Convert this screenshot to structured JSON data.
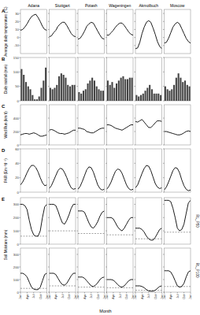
{
  "chart_data": [
    {
      "type": "line",
      "title": "A",
      "ylabel": "Average daily temperature (°C)",
      "xlim": [
        0,
        12
      ],
      "ylim": [
        -20,
        35
      ],
      "yticks": [
        -10,
        0,
        10,
        20,
        30
      ],
      "tick_labels": "y",
      "color": "#000000",
      "x": [
        0,
        1,
        2,
        3,
        4,
        5,
        6,
        7,
        8,
        9,
        10,
        11,
        12
      ],
      "series": [
        {
          "name": "Adana",
          "values": [
            9,
            10,
            13,
            17,
            22,
            26,
            28,
            29,
            25,
            20,
            14,
            10,
            9
          ]
        },
        {
          "name": "Stuttgart",
          "values": [
            1,
            2,
            6,
            9,
            14,
            17,
            19,
            19,
            15,
            10,
            5,
            2,
            1
          ]
        },
        {
          "name": "Potash",
          "values": [
            -2,
            -1,
            3,
            8,
            14,
            17,
            19,
            18,
            13,
            8,
            3,
            -1,
            -2
          ]
        },
        {
          "name": "Wageningen",
          "values": [
            3,
            3,
            6,
            9,
            13,
            16,
            18,
            18,
            15,
            11,
            7,
            4,
            3
          ]
        },
        {
          "name": "Akmolbuch",
          "values": [
            -14,
            -13,
            -6,
            5,
            13,
            19,
            21,
            19,
            12,
            4,
            -5,
            -11,
            -14
          ]
        },
        {
          "name": "Moscow",
          "values": [
            -7,
            -6,
            -1,
            6,
            13,
            17,
            19,
            17,
            11,
            5,
            -1,
            -5,
            -7
          ]
        }
      ]
    },
    {
      "type": "bar",
      "title": "B",
      "ylabel": "Daily rainfall (mm)",
      "xlim": [
        0,
        12
      ],
      "ylim": [
        0,
        150
      ],
      "yticks": [
        0,
        50,
        100,
        150
      ],
      "tick_labels": "y",
      "color": "#444444",
      "x": [
        0.5,
        1.5,
        2.5,
        3.5,
        4.5,
        5.5,
        6.5,
        7.5,
        8.5,
        9.5,
        10.5,
        11.5
      ],
      "series": [
        {
          "values": [
            110,
            90,
            65,
            50,
            40,
            20,
            5,
            5,
            15,
            45,
            70,
            115
          ]
        },
        {
          "values": [
            45,
            40,
            45,
            55,
            85,
            95,
            90,
            80,
            55,
            50,
            55,
            55
          ]
        },
        {
          "values": [
            30,
            25,
            35,
            40,
            60,
            70,
            80,
            70,
            50,
            40,
            35,
            35
          ]
        },
        {
          "values": [
            70,
            55,
            65,
            45,
            60,
            70,
            80,
            85,
            75,
            75,
            80,
            80
          ]
        },
        {
          "values": [
            20,
            15,
            20,
            25,
            35,
            45,
            55,
            40,
            25,
            25,
            25,
            20
          ]
        },
        {
          "values": [
            50,
            40,
            35,
            40,
            55,
            80,
            95,
            80,
            65,
            70,
            55,
            50
          ]
        }
      ]
    },
    {
      "type": "line",
      "title": "C",
      "ylabel": "Wind Run (km/d)",
      "xlim": [
        0,
        12
      ],
      "ylim": [
        0,
        600
      ],
      "yticks": [
        0,
        200,
        400
      ],
      "tick_labels": "y",
      "color": "#000000",
      "x": [
        0,
        1,
        2,
        3,
        4,
        5,
        6,
        7,
        8,
        9,
        10,
        11,
        12
      ],
      "series": [
        {
          "values": [
            150,
            160,
            170,
            170,
            160,
            170,
            180,
            170,
            150,
            130,
            130,
            140,
            150
          ]
        },
        {
          "values": [
            220,
            230,
            220,
            200,
            180,
            170,
            170,
            160,
            170,
            180,
            200,
            220,
            220
          ]
        },
        {
          "values": [
            250,
            250,
            240,
            230,
            200,
            190,
            180,
            180,
            200,
            220,
            240,
            250,
            250
          ]
        },
        {
          "values": [
            300,
            300,
            290,
            270,
            250,
            240,
            230,
            220,
            240,
            260,
            280,
            300,
            300
          ]
        },
        {
          "values": [
            350,
            340,
            360,
            380,
            340,
            300,
            260,
            260,
            290,
            330,
            360,
            360,
            350
          ]
        },
        {
          "values": [
            200,
            200,
            190,
            180,
            170,
            160,
            150,
            150,
            160,
            180,
            200,
            210,
            200
          ]
        }
      ]
    },
    {
      "type": "line",
      "title": "D",
      "ylabel": "PAR (Em⁻²d⁻¹)",
      "xlim": [
        0,
        12
      ],
      "ylim": [
        0,
        60
      ],
      "yticks": [
        0,
        20,
        40,
        60
      ],
      "tick_labels": "y",
      "color": "#000000",
      "x": [
        0,
        1,
        2,
        3,
        4,
        5,
        6,
        7,
        8,
        9,
        10,
        11,
        12
      ],
      "series": [
        {
          "values": [
            10,
            14,
            20,
            27,
            33,
            37,
            37,
            34,
            28,
            20,
            13,
            9,
            10
          ]
        },
        {
          "values": [
            5,
            9,
            16,
            23,
            30,
            33,
            32,
            27,
            20,
            12,
            6,
            4,
            5
          ]
        },
        {
          "values": [
            4,
            8,
            15,
            23,
            31,
            35,
            34,
            28,
            19,
            10,
            5,
            3,
            4
          ]
        },
        {
          "values": [
            4,
            8,
            14,
            22,
            29,
            32,
            31,
            26,
            18,
            10,
            5,
            3,
            4
          ]
        },
        {
          "values": [
            6,
            10,
            18,
            26,
            33,
            37,
            36,
            30,
            21,
            12,
            7,
            5,
            6
          ]
        },
        {
          "values": [
            3,
            7,
            14,
            22,
            30,
            34,
            33,
            27,
            17,
            9,
            4,
            2,
            3
          ]
        }
      ]
    },
    {
      "type": "line",
      "title": "E",
      "ylabel": "Soil Moisture (mm)",
      "subtitle": "RL_P50",
      "xlim": [
        0,
        12
      ],
      "ylim": [
        0,
        350
      ],
      "yticks": [
        0,
        100,
        200,
        300
      ],
      "tick_labels": "y",
      "color": "#000000",
      "x": [
        0,
        1,
        2,
        3,
        4,
        5,
        6,
        7,
        8,
        9,
        10,
        11,
        12
      ],
      "series": [
        {
          "values": [
            300,
            300,
            290,
            260,
            180,
            110,
            70,
            60,
            60,
            100,
            200,
            280,
            300
          ],
          "threshold": 60
        },
        {
          "values": [
            300,
            300,
            300,
            290,
            250,
            200,
            160,
            150,
            180,
            220,
            270,
            300,
            300
          ],
          "threshold": 100
        },
        {
          "values": [
            250,
            250,
            250,
            240,
            200,
            160,
            130,
            120,
            140,
            170,
            210,
            240,
            250
          ],
          "threshold": 80
        },
        {
          "values": [
            200,
            200,
            200,
            190,
            160,
            130,
            110,
            100,
            120,
            150,
            180,
            200,
            200
          ],
          "threshold": 70
        },
        {
          "values": [
            120,
            120,
            120,
            110,
            90,
            60,
            40,
            30,
            30,
            50,
            80,
            110,
            120
          ],
          "threshold": 40
        },
        {
          "values": [
            330,
            330,
            330,
            320,
            270,
            200,
            120,
            100,
            110,
            150,
            230,
            310,
            330
          ],
          "threshold": 90
        }
      ]
    },
    {
      "type": "line",
      "subtitle": "RL_P100",
      "xlabel": "Month",
      "xlim": [
        0,
        12
      ],
      "ylim": [
        0,
        350
      ],
      "yticks": [
        0,
        100,
        200,
        300
      ],
      "color": "#000000",
      "xticks": [
        {
          "value": 0,
          "label": "Jan"
        },
        {
          "value": 3,
          "label": "Apr"
        },
        {
          "value": 6,
          "label": "Jul"
        },
        {
          "value": 9,
          "label": "Oct"
        },
        {
          "value": 12,
          "label": "Jan"
        }
      ],
      "x": [
        0,
        1,
        2,
        3,
        4,
        5,
        6,
        7,
        8,
        9,
        10,
        11,
        12
      ],
      "series": [
        {
          "values": [
            150,
            150,
            140,
            120,
            80,
            40,
            25,
            20,
            20,
            40,
            90,
            140,
            150
          ],
          "threshold": 30
        },
        {
          "values": [
            150,
            150,
            150,
            140,
            110,
            80,
            60,
            55,
            70,
            100,
            130,
            150,
            150
          ],
          "threshold": 50
        },
        {
          "values": [
            120,
            120,
            120,
            110,
            90,
            70,
            50,
            45,
            55,
            75,
            100,
            115,
            120
          ],
          "threshold": 40
        },
        {
          "values": [
            100,
            100,
            100,
            95,
            80,
            60,
            45,
            40,
            50,
            70,
            90,
            100,
            100
          ],
          "threshold": 35
        },
        {
          "values": [
            50,
            50,
            50,
            45,
            35,
            20,
            10,
            8,
            8,
            15,
            30,
            45,
            50
          ],
          "threshold": 15
        },
        {
          "values": [
            170,
            170,
            170,
            160,
            130,
            90,
            50,
            40,
            45,
            70,
            120,
            160,
            170
          ],
          "threshold": 45
        }
      ]
    }
  ]
}
